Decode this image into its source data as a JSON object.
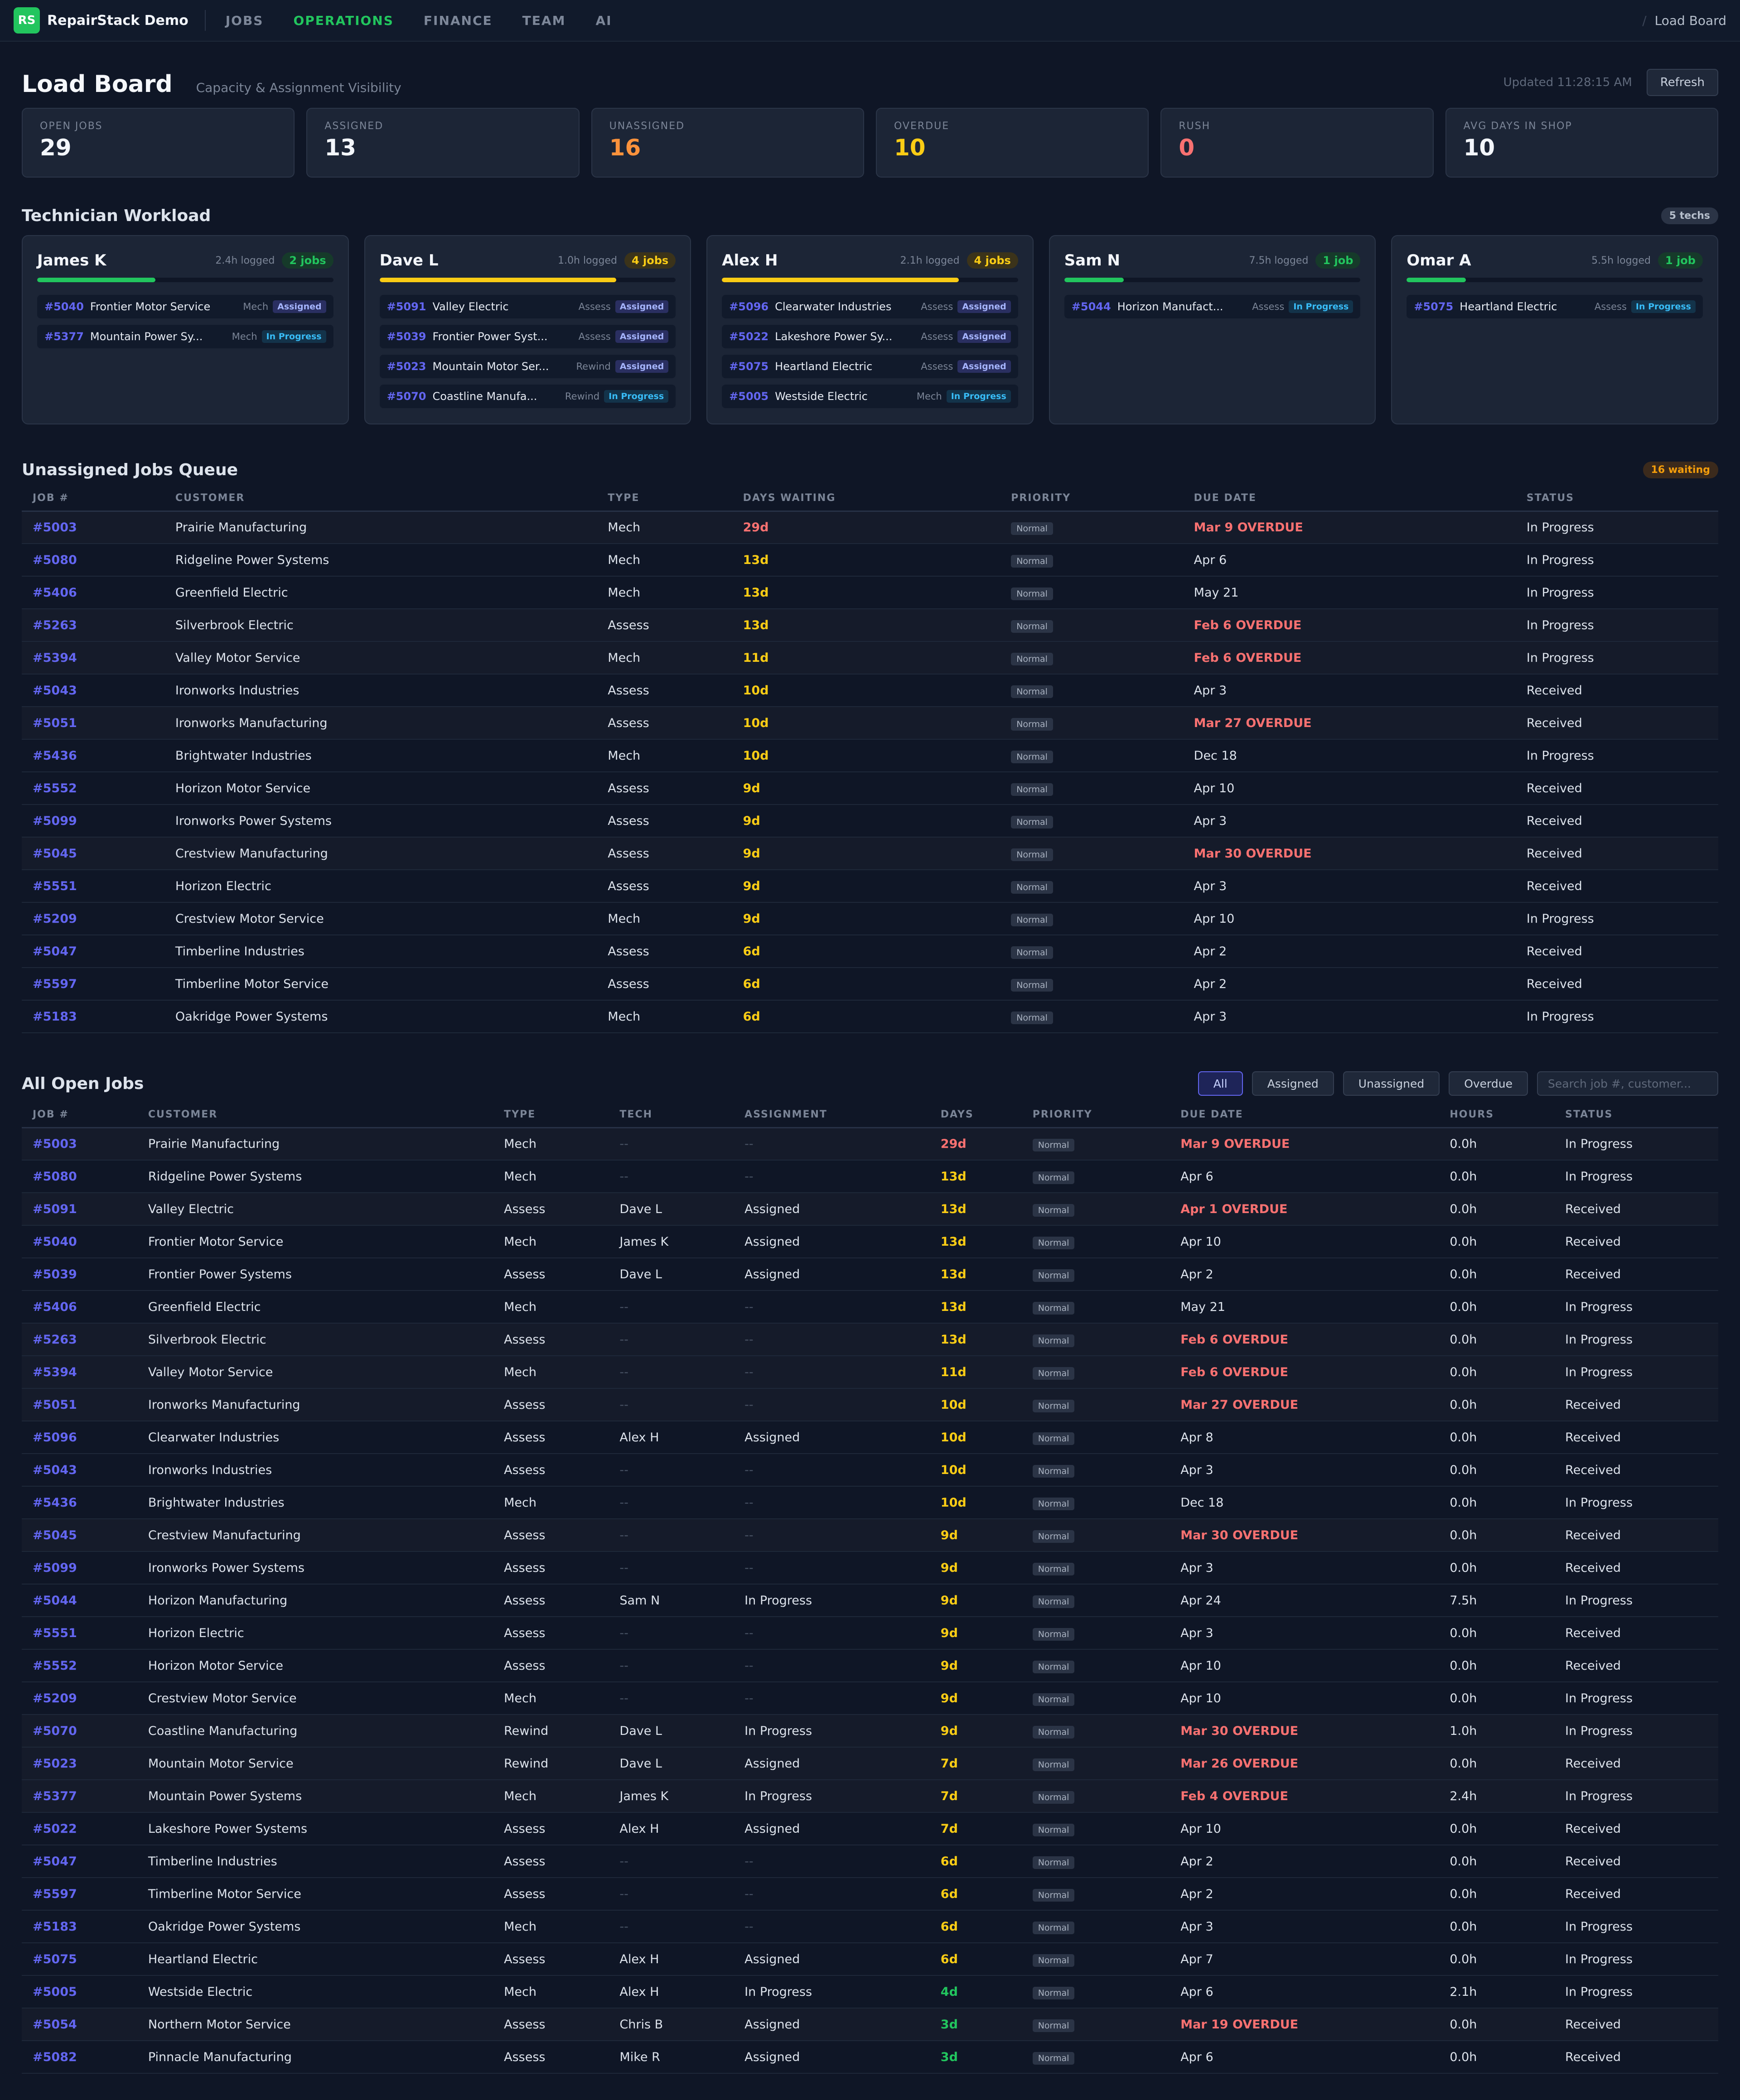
{
  "app": {
    "logo": "RS",
    "name": "RepairStack Demo",
    "nav": [
      "JOBS",
      "OPERATIONS",
      "FINANCE",
      "TEAM",
      "AI"
    ],
    "active_nav": "OPERATIONS",
    "breadcrumb": "Load Board"
  },
  "header": {
    "title": "Load Board",
    "subtitle": "Capacity & Assignment Visibility",
    "updated": "Updated 11:28:15 AM",
    "refresh_label": "Refresh"
  },
  "stats": [
    {
      "label": "OPEN JOBS",
      "value": "29",
      "color": "#f3f6fb"
    },
    {
      "label": "ASSIGNED",
      "value": "13",
      "color": "#f3f6fb"
    },
    {
      "label": "UNASSIGNED",
      "value": "16",
      "color": "#fb923c"
    },
    {
      "label": "OVERDUE",
      "value": "10",
      "color": "#facc15"
    },
    {
      "label": "RUSH",
      "value": "0",
      "color": "#f87171"
    },
    {
      "label": "AVG DAYS IN SHOP",
      "value": "10",
      "color": "#f3f6fb"
    }
  ],
  "workload": {
    "title": "Technician Workload",
    "count_label": "5 techs",
    "techs": [
      {
        "name": "James K",
        "logged": "2.4h logged",
        "jobs_label": "2 jobs",
        "badge": "green",
        "load": 0.4,
        "bar_color": "#22c55e",
        "jobs": [
          {
            "id": "#5040",
            "customer": "Frontier Motor Service",
            "type": "Mech",
            "status": "Assigned"
          },
          {
            "id": "#5377",
            "customer": "Mountain Power Sy...",
            "type": "Mech",
            "status": "In Progress"
          }
        ]
      },
      {
        "name": "Dave L",
        "logged": "1.0h logged",
        "jobs_label": "4 jobs",
        "badge": "yellow",
        "load": 0.8,
        "bar_color": "#facc15",
        "jobs": [
          {
            "id": "#5091",
            "customer": "Valley Electric",
            "type": "Assess",
            "status": "Assigned"
          },
          {
            "id": "#5039",
            "customer": "Frontier Power Syst...",
            "type": "Assess",
            "status": "Assigned"
          },
          {
            "id": "#5023",
            "customer": "Mountain Motor Ser...",
            "type": "Rewind",
            "status": "Assigned"
          },
          {
            "id": "#5070",
            "customer": "Coastline Manufa...",
            "type": "Rewind",
            "status": "In Progress"
          }
        ]
      },
      {
        "name": "Alex H",
        "logged": "2.1h logged",
        "jobs_label": "4 jobs",
        "badge": "yellow",
        "load": 0.8,
        "bar_color": "#facc15",
        "jobs": [
          {
            "id": "#5096",
            "customer": "Clearwater Industries",
            "type": "Assess",
            "status": "Assigned"
          },
          {
            "id": "#5022",
            "customer": "Lakeshore Power Sy...",
            "type": "Assess",
            "status": "Assigned"
          },
          {
            "id": "#5075",
            "customer": "Heartland Electric",
            "type": "Assess",
            "status": "Assigned"
          },
          {
            "id": "#5005",
            "customer": "Westside Electric",
            "type": "Mech",
            "status": "In Progress"
          }
        ]
      },
      {
        "name": "Sam N",
        "logged": "7.5h logged",
        "jobs_label": "1 job",
        "badge": "green",
        "load": 0.2,
        "bar_color": "#22c55e",
        "jobs": [
          {
            "id": "#5044",
            "customer": "Horizon Manufact...",
            "type": "Assess",
            "status": "In Progress"
          }
        ]
      },
      {
        "name": "Omar A",
        "logged": "5.5h logged",
        "jobs_label": "1 job",
        "badge": "green",
        "load": 0.2,
        "bar_color": "#22c55e",
        "jobs": [
          {
            "id": "#5075",
            "customer": "Heartland Electric",
            "type": "Assess",
            "status": "In Progress"
          }
        ]
      }
    ]
  },
  "queue": {
    "title": "Unassigned Jobs Queue",
    "count_label": "16 waiting",
    "columns": [
      "JOB #",
      "CUSTOMER",
      "TYPE",
      "DAYS WAITING",
      "PRIORITY",
      "DUE DATE",
      "STATUS"
    ],
    "rows": [
      {
        "id": "#5003",
        "customer": "Prairie Manufacturing",
        "type": "Mech",
        "days": "29d",
        "days_level": "red",
        "priority": "Normal",
        "due": "Mar 9 OVERDUE",
        "overdue": true,
        "status": "In Progress"
      },
      {
        "id": "#5080",
        "customer": "Ridgeline Power Systems",
        "type": "Mech",
        "days": "13d",
        "days_level": "yellow",
        "priority": "Normal",
        "due": "Apr 6",
        "overdue": false,
        "status": "In Progress"
      },
      {
        "id": "#5406",
        "customer": "Greenfield Electric",
        "type": "Mech",
        "days": "13d",
        "days_level": "yellow",
        "priority": "Normal",
        "due": "May 21",
        "overdue": false,
        "status": "In Progress"
      },
      {
        "id": "#5263",
        "customer": "Silverbrook Electric",
        "type": "Assess",
        "days": "13d",
        "days_level": "yellow",
        "priority": "Normal",
        "due": "Feb 6 OVERDUE",
        "overdue": true,
        "status": "In Progress"
      },
      {
        "id": "#5394",
        "customer": "Valley Motor Service",
        "type": "Mech",
        "days": "11d",
        "days_level": "yellow",
        "priority": "Normal",
        "due": "Feb 6 OVERDUE",
        "overdue": true,
        "status": "In Progress"
      },
      {
        "id": "#5043",
        "customer": "Ironworks Industries",
        "type": "Assess",
        "days": "10d",
        "days_level": "yellow",
        "priority": "Normal",
        "due": "Apr 3",
        "overdue": false,
        "status": "Received"
      },
      {
        "id": "#5051",
        "customer": "Ironworks Manufacturing",
        "type": "Assess",
        "days": "10d",
        "days_level": "yellow",
        "priority": "Normal",
        "due": "Mar 27 OVERDUE",
        "overdue": true,
        "status": "Received"
      },
      {
        "id": "#5436",
        "customer": "Brightwater Industries",
        "type": "Mech",
        "days": "10d",
        "days_level": "yellow",
        "priority": "Normal",
        "due": "Dec 18",
        "overdue": false,
        "status": "In Progress"
      },
      {
        "id": "#5552",
        "customer": "Horizon Motor Service",
        "type": "Assess",
        "days": "9d",
        "days_level": "yellow",
        "priority": "Normal",
        "due": "Apr 10",
        "overdue": false,
        "status": "Received"
      },
      {
        "id": "#5099",
        "customer": "Ironworks Power Systems",
        "type": "Assess",
        "days": "9d",
        "days_level": "yellow",
        "priority": "Normal",
        "due": "Apr 3",
        "overdue": false,
        "status": "Received"
      },
      {
        "id": "#5045",
        "customer": "Crestview Manufacturing",
        "type": "Assess",
        "days": "9d",
        "days_level": "yellow",
        "priority": "Normal",
        "due": "Mar 30 OVERDUE",
        "overdue": true,
        "status": "Received"
      },
      {
        "id": "#5551",
        "customer": "Horizon Electric",
        "type": "Assess",
        "days": "9d",
        "days_level": "yellow",
        "priority": "Normal",
        "due": "Apr 3",
        "overdue": false,
        "status": "Received"
      },
      {
        "id": "#5209",
        "customer": "Crestview Motor Service",
        "type": "Mech",
        "days": "9d",
        "days_level": "yellow",
        "priority": "Normal",
        "due": "Apr 10",
        "overdue": false,
        "status": "In Progress"
      },
      {
        "id": "#5047",
        "customer": "Timberline Industries",
        "type": "Assess",
        "days": "6d",
        "days_level": "yellow",
        "priority": "Normal",
        "due": "Apr 2",
        "overdue": false,
        "status": "Received"
      },
      {
        "id": "#5597",
        "customer": "Timberline Motor Service",
        "type": "Assess",
        "days": "6d",
        "days_level": "yellow",
        "priority": "Normal",
        "due": "Apr 2",
        "overdue": false,
        "status": "Received"
      },
      {
        "id": "#5183",
        "customer": "Oakridge Power Systems",
        "type": "Mech",
        "days": "6d",
        "days_level": "yellow",
        "priority": "Normal",
        "due": "Apr 3",
        "overdue": false,
        "status": "In Progress"
      }
    ]
  },
  "all_jobs": {
    "title": "All Open Jobs",
    "filters": [
      "All",
      "Assigned",
      "Unassigned",
      "Overdue"
    ],
    "active_filter": "All",
    "search_placeholder": "Search job #, customer...",
    "columns": [
      "JOB #",
      "CUSTOMER",
      "TYPE",
      "TECH",
      "ASSIGNMENT",
      "DAYS",
      "PRIORITY",
      "DUE DATE",
      "HOURS",
      "STATUS"
    ],
    "rows": [
      {
        "id": "#5003",
        "customer": "Prairie Manufacturing",
        "type": "Mech",
        "tech": "--",
        "assignment": "--",
        "days": "29d",
        "days_level": "red",
        "priority": "Normal",
        "due": "Mar 9 OVERDUE",
        "overdue": true,
        "hours": "0.0h",
        "status": "In Progress"
      },
      {
        "id": "#5080",
        "customer": "Ridgeline Power Systems",
        "type": "Mech",
        "tech": "--",
        "assignment": "--",
        "days": "13d",
        "days_level": "yellow",
        "priority": "Normal",
        "due": "Apr 6",
        "overdue": false,
        "hours": "0.0h",
        "status": "In Progress"
      },
      {
        "id": "#5091",
        "customer": "Valley Electric",
        "type": "Assess",
        "tech": "Dave L",
        "assignment": "Assigned",
        "days": "13d",
        "days_level": "yellow",
        "priority": "Normal",
        "due": "Apr 1 OVERDUE",
        "overdue": true,
        "hours": "0.0h",
        "status": "Received"
      },
      {
        "id": "#5040",
        "customer": "Frontier Motor Service",
        "type": "Mech",
        "tech": "James K",
        "assignment": "Assigned",
        "days": "13d",
        "days_level": "yellow",
        "priority": "Normal",
        "due": "Apr 10",
        "overdue": false,
        "hours": "0.0h",
        "status": "Received"
      },
      {
        "id": "#5039",
        "customer": "Frontier Power Systems",
        "type": "Assess",
        "tech": "Dave L",
        "assignment": "Assigned",
        "days": "13d",
        "days_level": "yellow",
        "priority": "Normal",
        "due": "Apr 2",
        "overdue": false,
        "hours": "0.0h",
        "status": "Received"
      },
      {
        "id": "#5406",
        "customer": "Greenfield Electric",
        "type": "Mech",
        "tech": "--",
        "assignment": "--",
        "days": "13d",
        "days_level": "yellow",
        "priority": "Normal",
        "due": "May 21",
        "overdue": false,
        "hours": "0.0h",
        "status": "In Progress"
      },
      {
        "id": "#5263",
        "customer": "Silverbrook Electric",
        "type": "Assess",
        "tech": "--",
        "assignment": "--",
        "days": "13d",
        "days_level": "yellow",
        "priority": "Normal",
        "due": "Feb 6 OVERDUE",
        "overdue": true,
        "hours": "0.0h",
        "status": "In Progress"
      },
      {
        "id": "#5394",
        "customer": "Valley Motor Service",
        "type": "Mech",
        "tech": "--",
        "assignment": "--",
        "days": "11d",
        "days_level": "yellow",
        "priority": "Normal",
        "due": "Feb 6 OVERDUE",
        "overdue": true,
        "hours": "0.0h",
        "status": "In Progress"
      },
      {
        "id": "#5051",
        "customer": "Ironworks Manufacturing",
        "type": "Assess",
        "tech": "--",
        "assignment": "--",
        "days": "10d",
        "days_level": "yellow",
        "priority": "Normal",
        "due": "Mar 27 OVERDUE",
        "overdue": true,
        "hours": "0.0h",
        "status": "Received"
      },
      {
        "id": "#5096",
        "customer": "Clearwater Industries",
        "type": "Assess",
        "tech": "Alex H",
        "assignment": "Assigned",
        "days": "10d",
        "days_level": "yellow",
        "priority": "Normal",
        "due": "Apr 8",
        "overdue": false,
        "hours": "0.0h",
        "status": "Received"
      },
      {
        "id": "#5043",
        "customer": "Ironworks Industries",
        "type": "Assess",
        "tech": "--",
        "assignment": "--",
        "days": "10d",
        "days_level": "yellow",
        "priority": "Normal",
        "due": "Apr 3",
        "overdue": false,
        "hours": "0.0h",
        "status": "Received"
      },
      {
        "id": "#5436",
        "customer": "Brightwater Industries",
        "type": "Mech",
        "tech": "--",
        "assignment": "--",
        "days": "10d",
        "days_level": "yellow",
        "priority": "Normal",
        "due": "Dec 18",
        "overdue": false,
        "hours": "0.0h",
        "status": "In Progress"
      },
      {
        "id": "#5045",
        "customer": "Crestview Manufacturing",
        "type": "Assess",
        "tech": "--",
        "assignment": "--",
        "days": "9d",
        "days_level": "yellow",
        "priority": "Normal",
        "due": "Mar 30 OVERDUE",
        "overdue": true,
        "hours": "0.0h",
        "status": "Received"
      },
      {
        "id": "#5099",
        "customer": "Ironworks Power Systems",
        "type": "Assess",
        "tech": "--",
        "assignment": "--",
        "days": "9d",
        "days_level": "yellow",
        "priority": "Normal",
        "due": "Apr 3",
        "overdue": false,
        "hours": "0.0h",
        "status": "Received"
      },
      {
        "id": "#5044",
        "customer": "Horizon Manufacturing",
        "type": "Assess",
        "tech": "Sam N",
        "assignment": "In Progress",
        "days": "9d",
        "days_level": "yellow",
        "priority": "Normal",
        "due": "Apr 24",
        "overdue": false,
        "hours": "7.5h",
        "status": "In Progress"
      },
      {
        "id": "#5551",
        "customer": "Horizon Electric",
        "type": "Assess",
        "tech": "--",
        "assignment": "--",
        "days": "9d",
        "days_level": "yellow",
        "priority": "Normal",
        "due": "Apr 3",
        "overdue": false,
        "hours": "0.0h",
        "status": "Received"
      },
      {
        "id": "#5552",
        "customer": "Horizon Motor Service",
        "type": "Assess",
        "tech": "--",
        "assignment": "--",
        "days": "9d",
        "days_level": "yellow",
        "priority": "Normal",
        "due": "Apr 10",
        "overdue": false,
        "hours": "0.0h",
        "status": "Received"
      },
      {
        "id": "#5209",
        "customer": "Crestview Motor Service",
        "type": "Mech",
        "tech": "--",
        "assignment": "--",
        "days": "9d",
        "days_level": "yellow",
        "priority": "Normal",
        "due": "Apr 10",
        "overdue": false,
        "hours": "0.0h",
        "status": "In Progress"
      },
      {
        "id": "#5070",
        "customer": "Coastline Manufacturing",
        "type": "Rewind",
        "tech": "Dave L",
        "assignment": "In Progress",
        "days": "9d",
        "days_level": "yellow",
        "priority": "Normal",
        "due": "Mar 30 OVERDUE",
        "overdue": true,
        "hours": "1.0h",
        "status": "In Progress"
      },
      {
        "id": "#5023",
        "customer": "Mountain Motor Service",
        "type": "Rewind",
        "tech": "Dave L",
        "assignment": "Assigned",
        "days": "7d",
        "days_level": "yellow",
        "priority": "Normal",
        "due": "Mar 26 OVERDUE",
        "overdue": true,
        "hours": "0.0h",
        "status": "Received"
      },
      {
        "id": "#5377",
        "customer": "Mountain Power Systems",
        "type": "Mech",
        "tech": "James K",
        "assignment": "In Progress",
        "days": "7d",
        "days_level": "yellow",
        "priority": "Normal",
        "due": "Feb 4 OVERDUE",
        "overdue": true,
        "hours": "2.4h",
        "status": "In Progress"
      },
      {
        "id": "#5022",
        "customer": "Lakeshore Power Systems",
        "type": "Assess",
        "tech": "Alex H",
        "assignment": "Assigned",
        "days": "7d",
        "days_level": "yellow",
        "priority": "Normal",
        "due": "Apr 10",
        "overdue": false,
        "hours": "0.0h",
        "status": "Received"
      },
      {
        "id": "#5047",
        "customer": "Timberline Industries",
        "type": "Assess",
        "tech": "--",
        "assignment": "--",
        "days": "6d",
        "days_level": "yellow",
        "priority": "Normal",
        "due": "Apr 2",
        "overdue": false,
        "hours": "0.0h",
        "status": "Received"
      },
      {
        "id": "#5597",
        "customer": "Timberline Motor Service",
        "type": "Assess",
        "tech": "--",
        "assignment": "--",
        "days": "6d",
        "days_level": "yellow",
        "priority": "Normal",
        "due": "Apr 2",
        "overdue": false,
        "hours": "0.0h",
        "status": "Received"
      },
      {
        "id": "#5183",
        "customer": "Oakridge Power Systems",
        "type": "Mech",
        "tech": "--",
        "assignment": "--",
        "days": "6d",
        "days_level": "yellow",
        "priority": "Normal",
        "due": "Apr 3",
        "overdue": false,
        "hours": "0.0h",
        "status": "In Progress"
      },
      {
        "id": "#5075",
        "customer": "Heartland Electric",
        "type": "Assess",
        "tech": "Alex H",
        "assignment": "Assigned",
        "days": "6d",
        "days_level": "yellow",
        "priority": "Normal",
        "due": "Apr 7",
        "overdue": false,
        "hours": "0.0h",
        "status": "In Progress"
      },
      {
        "id": "#5005",
        "customer": "Westside Electric",
        "type": "Mech",
        "tech": "Alex H",
        "assignment": "In Progress",
        "days": "4d",
        "days_level": "green",
        "priority": "Normal",
        "due": "Apr 6",
        "overdue": false,
        "hours": "2.1h",
        "status": "In Progress"
      },
      {
        "id": "#5054",
        "customer": "Northern Motor Service",
        "type": "Assess",
        "tech": "Chris B",
        "assignment": "Assigned",
        "days": "3d",
        "days_level": "green",
        "priority": "Normal",
        "due": "Mar 19 OVERDUE",
        "overdue": true,
        "hours": "0.0h",
        "status": "Received"
      },
      {
        "id": "#5082",
        "customer": "Pinnacle Manufacturing",
        "type": "Assess",
        "tech": "Mike R",
        "assignment": "Assigned",
        "days": "3d",
        "days_level": "green",
        "priority": "Normal",
        "due": "Apr 6",
        "overdue": false,
        "hours": "0.0h",
        "status": "Received"
      }
    ]
  }
}
